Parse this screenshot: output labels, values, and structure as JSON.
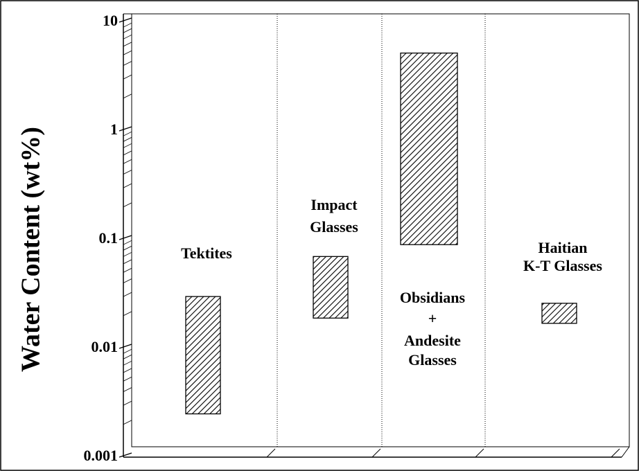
{
  "chart_data": {
    "type": "range",
    "y_label": "Water Content  (wt%)",
    "labels": [
      [
        "Tektites"
      ],
      [
        "Impact",
        "Glasses"
      ],
      [
        "Obsidians",
        "+",
        "Andesite",
        "Glasses"
      ],
      [
        "Haitian",
        "K-T Glasses"
      ]
    ],
    "low": [
      0.0025,
      0.019,
      0.09,
      0.017
    ],
    "high": [
      0.03,
      0.07,
      5.2,
      0.026
    ],
    "color": "#000000",
    "log_y": true,
    "ylim": [
      0.001,
      10
    ],
    "yticks": [
      0.001,
      0.01,
      0.1,
      1,
      10
    ]
  }
}
